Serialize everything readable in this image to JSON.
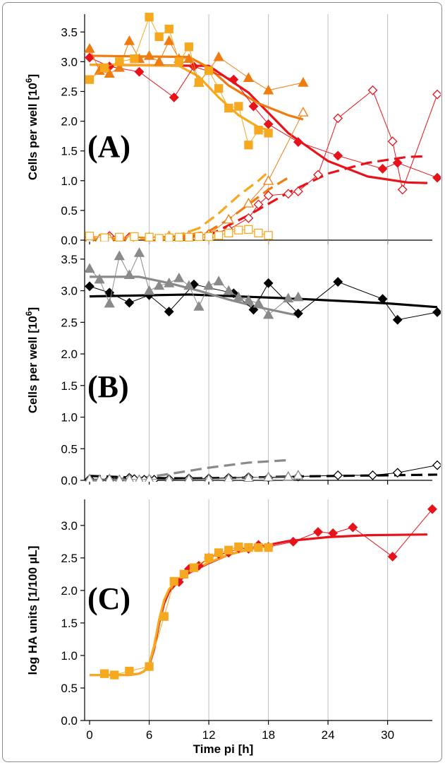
{
  "colors": {
    "red": "#e8121a",
    "orange": "#f07c10",
    "lightorange": "#f6a81e",
    "gray": "#8a8a8a",
    "black": "#000000",
    "grid": "#bdbdbd"
  },
  "chart_data": [
    {
      "type": "line",
      "panel": "(A)",
      "ylabel": "Cells per well [10^6]",
      "ylabel_main": "Cells per well [10",
      "ylabel_exp": "6",
      "ylabel_end": "]",
      "ylim": [
        0,
        3.8
      ],
      "xlim": [
        -0.5,
        34.5
      ],
      "yticks": [
        "0.0",
        "0.5",
        "1.0",
        "1.5",
        "2.0",
        "2.5",
        "3.0",
        "3.5"
      ],
      "series": [
        {
          "key": "red-diamond",
          "color": "#e8121a",
          "marker": "diamond",
          "fill": true,
          "x": [
            0,
            2,
            5,
            8.5,
            10.5,
            14.5,
            16.5,
            18,
            21,
            25,
            29.5,
            31,
            35
          ],
          "y": [
            3.07,
            2.92,
            2.83,
            2.4,
            2.92,
            2.7,
            2.25,
            1.95,
            1.65,
            1.42,
            1.2,
            1.3,
            1.05
          ]
        },
        {
          "key": "red-diamond-open",
          "color": "#e8121a",
          "marker": "diamond",
          "fill": false,
          "x": [
            0,
            2,
            4,
            6,
            8,
            10,
            12,
            14,
            16,
            17,
            18,
            20,
            21,
            23,
            25,
            28.5,
            30.5,
            31.5,
            35
          ],
          "y": [
            0.05,
            0.07,
            0.05,
            0.05,
            0.06,
            0.07,
            0.1,
            0.18,
            0.37,
            0.6,
            0.75,
            0.78,
            0.82,
            1.1,
            2.05,
            2.52,
            1.66,
            0.85,
            2.45
          ]
        },
        {
          "key": "orange-triangle",
          "color": "#f07c10",
          "marker": "triangle",
          "fill": true,
          "x": [
            0,
            1,
            2,
            3,
            4,
            5,
            6,
            7,
            8,
            9,
            10,
            11,
            13,
            16,
            18,
            21.5
          ],
          "y": [
            3.22,
            2.85,
            2.8,
            2.9,
            3.35,
            3.05,
            3.1,
            3.0,
            3.35,
            3.05,
            3.05,
            2.65,
            3.08,
            2.73,
            2.52,
            2.65
          ]
        },
        {
          "key": "orange-triangle-open",
          "color": "#f07c10",
          "marker": "triangle",
          "fill": false,
          "x": [
            0,
            1,
            2,
            4,
            6,
            8,
            10,
            12,
            14,
            16,
            18,
            21.5
          ],
          "y": [
            0.02,
            0.02,
            0.03,
            0.03,
            0.05,
            0.07,
            0.08,
            0.1,
            0.35,
            0.62,
            1.0,
            2.15
          ]
        },
        {
          "key": "lightorange-square",
          "color": "#f6a81e",
          "marker": "square",
          "fill": true,
          "x": [
            0,
            1.5,
            3,
            4.5,
            6,
            7,
            8,
            9,
            10,
            11,
            12,
            13,
            14,
            15,
            16,
            17,
            18
          ],
          "y": [
            2.7,
            2.9,
            3.0,
            3.05,
            3.75,
            3.42,
            3.55,
            3.0,
            3.25,
            2.65,
            2.85,
            2.55,
            2.22,
            2.25,
            1.6,
            1.85,
            1.8
          ]
        },
        {
          "key": "lightorange-square-open",
          "color": "#f6a81e",
          "marker": "square",
          "fill": false,
          "x": [
            0,
            1.5,
            3,
            4.5,
            6,
            7,
            8,
            9,
            10,
            11,
            12,
            13,
            14,
            15,
            16,
            17,
            18
          ],
          "y": [
            0.07,
            0.04,
            0.05,
            0.06,
            0.05,
            0.03,
            0.04,
            0.05,
            0.05,
            0.06,
            0.06,
            0.08,
            0.12,
            0.17,
            0.18,
            0.12,
            0.08
          ]
        }
      ],
      "fits": [
        {
          "key": "red-fit",
          "color": "#e8121a",
          "dash": false,
          "x": [
            0,
            12,
            16,
            20,
            24,
            28,
            32,
            34
          ],
          "y": [
            2.95,
            2.93,
            2.48,
            1.8,
            1.33,
            1.07,
            0.97,
            0.96
          ]
        },
        {
          "key": "orange-fit",
          "color": "#f07c10",
          "dash": false,
          "x": [
            0,
            10,
            12,
            14,
            17,
            20,
            21.5
          ],
          "y": [
            3.1,
            3.08,
            2.9,
            2.6,
            2.3,
            2.1,
            2.03
          ]
        },
        {
          "key": "lightorange-fit",
          "color": "#f6a81e",
          "dash": false,
          "x": [
            0,
            9,
            11,
            13,
            15,
            17,
            18
          ],
          "y": [
            2.95,
            2.93,
            2.75,
            2.4,
            2.1,
            1.9,
            1.85
          ]
        },
        {
          "key": "red-fit-dashed",
          "color": "#e8121a",
          "dash": true,
          "x": [
            0,
            8,
            12,
            16,
            20,
            24,
            28,
            32,
            34
          ],
          "y": [
            0.02,
            0.02,
            0.08,
            0.42,
            0.8,
            1.12,
            1.3,
            1.4,
            1.41
          ]
        },
        {
          "key": "orange-fit-dashed",
          "color": "#f07c10",
          "dash": true,
          "x": [
            0,
            8,
            12,
            14,
            16,
            18,
            20
          ],
          "y": [
            0.02,
            0.03,
            0.15,
            0.35,
            0.6,
            0.85,
            1.05
          ]
        },
        {
          "key": "lightorange-fit-dashed",
          "color": "#f6a81e",
          "dash": true,
          "x": [
            0,
            8,
            11,
            13,
            15,
            17,
            18
          ],
          "y": [
            0.02,
            0.03,
            0.2,
            0.45,
            0.75,
            1.0,
            1.15
          ]
        }
      ]
    },
    {
      "type": "line",
      "panel": "(B)",
      "ylabel": "Cells per well [10^6]",
      "ylabel_main": "Cells per well [10",
      "ylabel_exp": "6",
      "ylabel_end": "]",
      "ylim": [
        0,
        3.8
      ],
      "xlim": [
        -0.5,
        34.5
      ],
      "yticks": [
        "0.0",
        "0.5",
        "1.0",
        "1.5",
        "2.0",
        "2.5",
        "3.0",
        "3.5"
      ],
      "series": [
        {
          "key": "black-diamond",
          "color": "#000000",
          "marker": "diamond",
          "fill": true,
          "x": [
            0,
            2,
            4,
            6,
            8,
            10.5,
            14.5,
            16.5,
            18,
            21,
            25,
            29.5,
            31,
            35
          ],
          "y": [
            3.07,
            2.97,
            2.81,
            2.93,
            2.67,
            3.1,
            2.96,
            2.7,
            3.12,
            2.64,
            3.14,
            2.87,
            2.54,
            2.66
          ]
        },
        {
          "key": "black-diamond-open",
          "color": "#000000",
          "marker": "diamond",
          "fill": false,
          "x": [
            0,
            2,
            4,
            4.5,
            5.5,
            6.5,
            8,
            10,
            12,
            14,
            16,
            18,
            21,
            25,
            28.5,
            31,
            35
          ],
          "y": [
            0.02,
            0.02,
            0.04,
            0.02,
            0.01,
            0.01,
            0.02,
            0.03,
            0.03,
            0.04,
            0.05,
            0.04,
            0.06,
            0.08,
            0.08,
            0.12,
            0.24
          ]
        },
        {
          "key": "gray-triangle",
          "color": "#8a8a8a",
          "marker": "triangle",
          "fill": true,
          "x": [
            0,
            1,
            2,
            3,
            4,
            5,
            6,
            7,
            8,
            9,
            10,
            11,
            12,
            13,
            14,
            15,
            16,
            17,
            18,
            20,
            21
          ],
          "y": [
            3.35,
            3.18,
            2.8,
            3.55,
            3.25,
            3.6,
            3.0,
            3.08,
            3.12,
            3.2,
            3.08,
            2.75,
            3.08,
            3.15,
            3.0,
            2.9,
            2.85,
            2.8,
            2.62,
            2.88,
            2.9
          ]
        },
        {
          "key": "gray-triangle-open",
          "color": "#8a8a8a",
          "marker": "triangle",
          "fill": false,
          "x": [
            0,
            1,
            2,
            3,
            4,
            5,
            6,
            8,
            10,
            12,
            14,
            16,
            18,
            20,
            21
          ],
          "y": [
            0.02,
            0.01,
            0.02,
            0.01,
            0.02,
            0.01,
            0.02,
            0.01,
            0.02,
            0.02,
            0.03,
            0.04,
            0.05,
            0.06,
            0.08
          ]
        }
      ],
      "fits": [
        {
          "key": "black-fit",
          "color": "#000000",
          "dash": false,
          "x": [
            0,
            10,
            20,
            30,
            35
          ],
          "y": [
            2.91,
            2.94,
            2.88,
            2.8,
            2.74
          ]
        },
        {
          "key": "gray-fit",
          "color": "#8a8a8a",
          "dash": false,
          "x": [
            0,
            5,
            8,
            11,
            14,
            17,
            20,
            21
          ],
          "y": [
            3.22,
            3.22,
            3.12,
            3.0,
            2.86,
            2.74,
            2.64,
            2.61
          ]
        },
        {
          "key": "black-fit-dashed",
          "color": "#000000",
          "dash": true,
          "x": [
            0,
            5,
            10,
            15,
            20,
            25,
            30,
            35
          ],
          "y": [
            0.07,
            0.04,
            0.03,
            0.04,
            0.06,
            0.07,
            0.08,
            0.09
          ]
        },
        {
          "key": "gray-fit-dashed",
          "color": "#8a8a8a",
          "dash": true,
          "x": [
            0,
            4,
            8,
            12,
            16,
            20
          ],
          "y": [
            0.0,
            0.01,
            0.1,
            0.2,
            0.28,
            0.32
          ]
        }
      ]
    },
    {
      "type": "line",
      "panel": "(C)",
      "ylabel": "log HA units [1/100 µL]",
      "xlabel": "Time pi [h]",
      "ylim": [
        0,
        3.4
      ],
      "xlim": [
        -0.5,
        34.5
      ],
      "yticks": [
        "0.0",
        "0.5",
        "1.0",
        "1.5",
        "2.0",
        "2.5",
        "3.0"
      ],
      "xticks": [
        "0",
        "6",
        "12",
        "18",
        "24",
        "30"
      ],
      "series": [
        {
          "key": "red-diamond-ha",
          "color": "#e8121a",
          "marker": "diamond",
          "fill": true,
          "x": [
            9,
            10,
            11,
            12,
            13,
            14,
            15,
            16,
            17,
            18,
            20.5,
            23,
            24.5,
            26.5,
            30.5,
            34.5
          ],
          "y": [
            2.13,
            2.33,
            2.38,
            2.5,
            2.56,
            2.58,
            2.65,
            2.64,
            2.7,
            2.67,
            2.75,
            2.9,
            2.88,
            2.97,
            2.52,
            3.25
          ]
        },
        {
          "key": "lightorange-square-ha",
          "color": "#f6a81e",
          "marker": "square",
          "fill": true,
          "x": [
            1.5,
            2.5,
            4,
            6,
            7.5,
            8.5,
            9.5,
            10.5,
            12,
            13,
            14,
            15,
            16,
            17,
            18
          ],
          "y": [
            0.72,
            0.7,
            0.76,
            0.83,
            1.6,
            2.14,
            2.25,
            2.35,
            2.5,
            2.58,
            2.62,
            2.67,
            2.66,
            2.66,
            2.66
          ]
        }
      ],
      "fits": [
        {
          "key": "red-fit-ha",
          "color": "#e8121a",
          "dash": false,
          "x": [
            0,
            4,
            5,
            5.5,
            6,
            6.5,
            7,
            7.5,
            8,
            9,
            10,
            12,
            14,
            16,
            18,
            20,
            24,
            28,
            34
          ],
          "y": [
            0.7,
            0.7,
            0.72,
            0.76,
            0.85,
            1.1,
            1.5,
            1.8,
            1.98,
            2.15,
            2.27,
            2.42,
            2.55,
            2.63,
            2.7,
            2.76,
            2.82,
            2.85,
            2.86
          ]
        },
        {
          "key": "lightorange-fit-ha",
          "color": "#f6a81e",
          "dash": false,
          "x": [
            0,
            4,
            5,
            5.5,
            6,
            6.5,
            7,
            7.5,
            8,
            9,
            10,
            12,
            14,
            16,
            18
          ],
          "y": [
            0.7,
            0.7,
            0.72,
            0.76,
            0.87,
            1.15,
            1.55,
            1.85,
            2.02,
            2.18,
            2.28,
            2.43,
            2.55,
            2.63,
            2.69
          ]
        }
      ]
    }
  ]
}
